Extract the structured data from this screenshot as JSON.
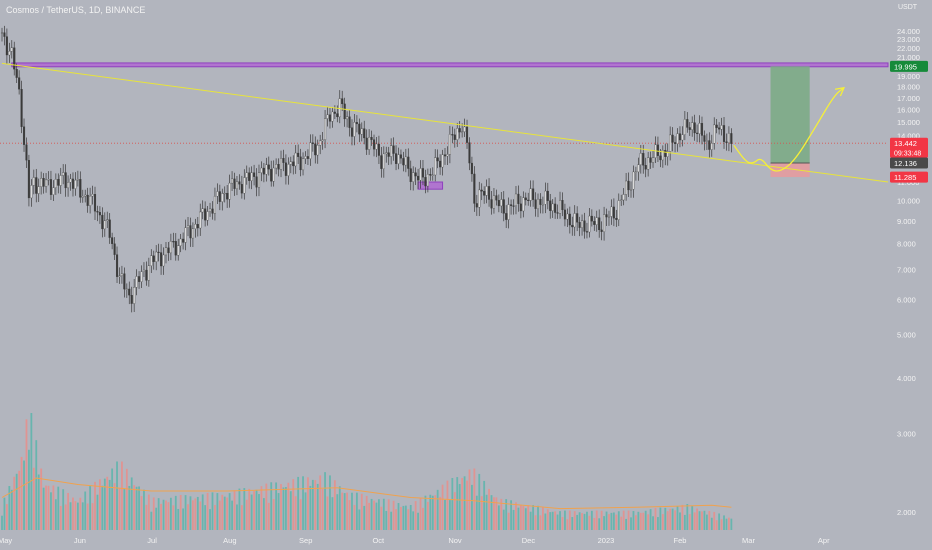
{
  "header": {
    "title": "Cosmos / TetherUS, 1D, BINANCE",
    "currency": "USDT"
  },
  "chart_data": {
    "type": "candlestick",
    "y_scale": "log",
    "ylim": [
      1.8,
      25.5
    ],
    "y_ticks": [
      24,
      23,
      22,
      21,
      20,
      19,
      18,
      17,
      16,
      15,
      14,
      13,
      12,
      11,
      10,
      9,
      8,
      7,
      6,
      5,
      4,
      3,
      2
    ],
    "y_tick_labels": [
      "24.000",
      "23.000",
      "22.000",
      "21.000",
      "20.000",
      "19.000",
      "18.000",
      "17.000",
      "16.000",
      "15.000",
      "14.000",
      "13.000",
      "12.000",
      "11.000",
      "10.000",
      "9.000",
      "8.000",
      "7.000",
      "6.000",
      "5.000",
      "4.000",
      "3.000",
      "2.000"
    ],
    "x_range": [
      "2022-05-01",
      "2023-04-28"
    ],
    "x_ticks": [
      {
        "date": "2022-05-01",
        "label": "May"
      },
      {
        "date": "2022-06-01",
        "label": "Jun"
      },
      {
        "date": "2022-07-01",
        "label": "Jul"
      },
      {
        "date": "2022-08-01",
        "label": "Aug"
      },
      {
        "date": "2022-09-01",
        "label": "Sep"
      },
      {
        "date": "2022-10-01",
        "label": "Oct"
      },
      {
        "date": "2022-11-01",
        "label": "Nov"
      },
      {
        "date": "2022-12-01",
        "label": "Dec"
      },
      {
        "date": "2023-01-01",
        "label": "2023"
      },
      {
        "date": "2023-02-01",
        "label": "Feb"
      },
      {
        "date": "2023-03-01",
        "label": "Mar"
      },
      {
        "date": "2023-04-01",
        "label": "Apr"
      }
    ],
    "price_path": [
      [
        "2022-05-01",
        23.8
      ],
      [
        "2022-05-05",
        21.0
      ],
      [
        "2022-05-08",
        17.5
      ],
      [
        "2022-05-10",
        13.5
      ],
      [
        "2022-05-12",
        10.2
      ],
      [
        "2022-05-14",
        11.0
      ],
      [
        "2022-05-20",
        10.8
      ],
      [
        "2022-05-28",
        11.2
      ],
      [
        "2022-06-08",
        9.7
      ],
      [
        "2022-06-14",
        8.4
      ],
      [
        "2022-06-18",
        6.7
      ],
      [
        "2022-06-22",
        6.1
      ],
      [
        "2022-07-01",
        7.3
      ],
      [
        "2022-07-12",
        8.0
      ],
      [
        "2022-07-22",
        9.2
      ],
      [
        "2022-08-01",
        10.6
      ],
      [
        "2022-08-10",
        11.2
      ],
      [
        "2022-08-20",
        11.8
      ],
      [
        "2022-08-31",
        12.3
      ],
      [
        "2022-09-07",
        13.3
      ],
      [
        "2022-09-12",
        15.5
      ],
      [
        "2022-09-16",
        16.3
      ],
      [
        "2022-09-20",
        14.8
      ],
      [
        "2022-09-26",
        14.0
      ],
      [
        "2022-10-03",
        12.5
      ],
      [
        "2022-10-09",
        12.8
      ],
      [
        "2022-10-14",
        11.7
      ],
      [
        "2022-10-20",
        11.1
      ],
      [
        "2022-10-26",
        12.0
      ],
      [
        "2022-11-01",
        13.7
      ],
      [
        "2022-11-05",
        14.9
      ],
      [
        "2022-11-08",
        12.3
      ],
      [
        "2022-11-10",
        10.1
      ],
      [
        "2022-11-15",
        10.4
      ],
      [
        "2022-11-22",
        9.5
      ],
      [
        "2022-12-01",
        10.1
      ],
      [
        "2022-12-10",
        9.9
      ],
      [
        "2022-12-16",
        9.4
      ],
      [
        "2022-12-22",
        8.8
      ],
      [
        "2023-01-01",
        8.9
      ],
      [
        "2023-01-07",
        9.5
      ],
      [
        "2023-01-12",
        10.8
      ],
      [
        "2023-01-16",
        12.0
      ],
      [
        "2023-01-22",
        12.5
      ],
      [
        "2023-01-28",
        13.0
      ],
      [
        "2023-02-02",
        14.2
      ],
      [
        "2023-02-08",
        14.8
      ],
      [
        "2023-02-13",
        13.3
      ],
      [
        "2023-02-17",
        14.5
      ],
      [
        "2023-02-21",
        14.0
      ],
      [
        "2023-02-23",
        13.44
      ]
    ],
    "volume_scale_max": 20,
    "volume_path": [
      [
        "2022-05-01",
        4
      ],
      [
        "2022-05-09",
        12
      ],
      [
        "2022-05-12",
        20
      ],
      [
        "2022-05-18",
        8
      ],
      [
        "2022-06-01",
        5
      ],
      [
        "2022-06-18",
        11
      ],
      [
        "2022-07-01",
        5
      ],
      [
        "2022-08-01",
        6
      ],
      [
        "2022-09-10",
        9
      ],
      [
        "2022-09-20",
        6
      ],
      [
        "2022-10-15",
        4
      ],
      [
        "2022-11-09",
        10
      ],
      [
        "2022-11-20",
        5
      ],
      [
        "2022-12-15",
        3
      ],
      [
        "2023-01-15",
        3
      ],
      [
        "2023-02-05",
        4
      ],
      [
        "2023-02-23",
        2
      ]
    ],
    "volume_ma": [
      [
        "2022-05-01",
        5
      ],
      [
        "2022-05-15",
        8
      ],
      [
        "2022-06-01",
        7
      ],
      [
        "2022-07-01",
        6
      ],
      [
        "2022-08-01",
        6
      ],
      [
        "2022-09-15",
        6.5
      ],
      [
        "2022-10-15",
        5
      ],
      [
        "2022-11-10",
        4.5
      ],
      [
        "2022-12-15",
        3.3
      ],
      [
        "2023-01-15",
        3.5
      ],
      [
        "2023-02-15",
        3.8
      ],
      [
        "2023-02-23",
        3.5
      ]
    ],
    "trendline": {
      "from": [
        "2022-05-01",
        20.3
      ],
      "to": [
        "2023-04-28",
        11.0
      ]
    },
    "resistance_zone": {
      "x_from": "2022-05-05",
      "x_to": "2023-04-28",
      "y_low": 19.95,
      "y_high": 20.35
    },
    "support_box": {
      "x_from": "2022-10-18",
      "x_to": "2022-10-28",
      "y_low": 10.6,
      "y_high": 11.0
    },
    "long_position": {
      "x_from": "2023-03-11",
      "x_to": "2023-03-27",
      "entry": 12.136,
      "target": 19.995,
      "stop": 11.285
    },
    "projection_path": [
      [
        "2023-02-24",
        13.3
      ],
      [
        "2023-03-01",
        12.2
      ],
      [
        "2023-03-04",
        12.1
      ],
      [
        "2023-03-07",
        12.5
      ],
      [
        "2023-03-11",
        11.7
      ],
      [
        "2023-03-15",
        11.6
      ],
      [
        "2023-03-21",
        12.3
      ],
      [
        "2023-03-30",
        14.8
      ],
      [
        "2023-04-06",
        17.2
      ],
      [
        "2023-04-10",
        17.9
      ]
    ],
    "price_labels": [
      {
        "value": "19.995",
        "price": 19.995,
        "color": "#168a3a"
      },
      {
        "value": "13.442",
        "sub": "09:33:48",
        "price": 13.442,
        "color": "#f23645"
      },
      {
        "value": "12.136",
        "price": 12.136,
        "color": "#4a4a4a"
      },
      {
        "value": "11.285",
        "price": 11.285,
        "color": "#f23645"
      }
    ],
    "last_price": 13.442,
    "colors": {
      "background": "#b2b5be",
      "up": "#dcdcdc",
      "down": "#3a3a3a",
      "trendline": "#e8e43a",
      "zone_fill": "#b06ad2",
      "zone_stroke": "#8a2dbf",
      "target_fill": "#7cab86",
      "stop_fill": "#e49b9e",
      "projection": "#f5ef3a",
      "vol_up": "#5bb5ab",
      "vol_down": "#e88e8b",
      "vol_ma": "#f0a24e",
      "last_price_line": "#d9534f"
    }
  }
}
